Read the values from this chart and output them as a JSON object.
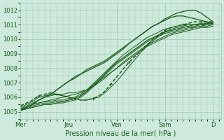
{
  "bg_color": "#ceeadc",
  "grid_color": "#a0c8b0",
  "line_color": "#1a5c1a",
  "xlabel": "Pression niveau de la mer( hPa )",
  "xlabel_color": "#1a5c1a",
  "ylim": [
    1004.5,
    1012.5
  ],
  "yticks": [
    1005,
    1006,
    1007,
    1008,
    1009,
    1010,
    1011,
    1012
  ],
  "xtick_labels": [
    "Mer",
    "Jeu",
    "Ven",
    "Sam",
    "D"
  ],
  "xtick_positions": [
    0,
    48,
    96,
    144,
    192
  ],
  "total_hours": 200,
  "lines": [
    {
      "x": [
        0,
        6,
        12,
        18,
        24,
        30,
        36,
        42,
        48,
        54,
        60,
        66,
        72,
        78,
        84,
        90,
        96,
        102,
        108,
        114,
        120,
        126,
        132,
        138,
        144,
        150,
        156,
        162,
        168,
        174,
        180,
        186,
        192
      ],
      "y": [
        1005.1,
        1005.3,
        1005.5,
        1005.6,
        1005.7,
        1005.7,
        1005.8,
        1005.8,
        1005.9,
        1006.0,
        1006.2,
        1006.5,
        1006.9,
        1007.3,
        1007.7,
        1008.1,
        1008.5,
        1008.9,
        1009.2,
        1009.5,
        1009.8,
        1010.1,
        1010.3,
        1010.5,
        1010.7,
        1010.8,
        1010.9,
        1011.0,
        1011.0,
        1011.0,
        1011.0,
        1011.1,
        1011.1
      ],
      "style": "-",
      "lw": 0.7,
      "marker": null
    },
    {
      "x": [
        0,
        6,
        12,
        18,
        24,
        30,
        36,
        42,
        48,
        54,
        60,
        66,
        72,
        78,
        84,
        90,
        96,
        102,
        108,
        114,
        120,
        126,
        132,
        138,
        144,
        150,
        156,
        162,
        168,
        174,
        180,
        186,
        192
      ],
      "y": [
        1005.1,
        1005.2,
        1005.4,
        1005.5,
        1005.6,
        1005.6,
        1005.7,
        1005.7,
        1005.8,
        1005.9,
        1006.1,
        1006.4,
        1006.8,
        1007.2,
        1007.6,
        1008.0,
        1008.4,
        1008.7,
        1009.0,
        1009.3,
        1009.6,
        1009.9,
        1010.1,
        1010.3,
        1010.5,
        1010.6,
        1010.7,
        1010.8,
        1010.9,
        1010.9,
        1011.0,
        1011.0,
        1011.0
      ],
      "style": "-",
      "lw": 0.7,
      "marker": null
    },
    {
      "x": [
        0,
        6,
        12,
        18,
        24,
        30,
        36,
        42,
        48,
        54,
        60,
        66,
        72,
        78,
        84,
        90,
        96,
        102,
        108,
        114,
        120,
        126,
        132,
        138,
        144,
        150,
        156,
        162,
        168,
        174,
        180,
        186,
        192
      ],
      "y": [
        1005.1,
        1005.2,
        1005.3,
        1005.4,
        1005.5,
        1005.5,
        1005.6,
        1005.6,
        1005.7,
        1005.8,
        1006.0,
        1006.3,
        1006.7,
        1007.1,
        1007.5,
        1007.9,
        1008.3,
        1008.6,
        1008.9,
        1009.2,
        1009.5,
        1009.8,
        1010.0,
        1010.2,
        1010.4,
        1010.5,
        1010.6,
        1010.7,
        1010.8,
        1010.8,
        1010.9,
        1010.9,
        1011.0
      ],
      "style": "-",
      "lw": 0.7,
      "marker": null
    },
    {
      "x": [
        0,
        6,
        12,
        18,
        24,
        30,
        36,
        42,
        48,
        54,
        60,
        66,
        72,
        78,
        84,
        90,
        96,
        102,
        108,
        114,
        120,
        126,
        132,
        138,
        144,
        150,
        156,
        162,
        168,
        174,
        180,
        186,
        192
      ],
      "y": [
        1005.1,
        1005.2,
        1005.3,
        1005.4,
        1005.5,
        1005.5,
        1005.6,
        1005.7,
        1005.8,
        1005.9,
        1006.1,
        1006.4,
        1006.8,
        1007.2,
        1007.6,
        1008.0,
        1008.4,
        1008.7,
        1009.0,
        1009.3,
        1009.6,
        1009.9,
        1010.1,
        1010.3,
        1010.5,
        1010.6,
        1010.7,
        1010.8,
        1010.9,
        1011.0,
        1011.0,
        1011.1,
        1011.1
      ],
      "style": "-",
      "lw": 0.7,
      "marker": null
    },
    {
      "x": [
        0,
        6,
        12,
        18,
        24,
        30,
        36,
        42,
        48,
        54,
        60,
        66,
        72,
        78,
        84,
        90,
        96,
        102,
        108,
        114,
        120,
        126,
        132,
        138,
        144,
        150,
        156,
        162,
        168,
        174,
        180,
        186,
        192
      ],
      "y": [
        1005.2,
        1005.3,
        1005.5,
        1005.6,
        1005.7,
        1005.8,
        1005.9,
        1006.0,
        1006.1,
        1006.2,
        1006.3,
        1006.5,
        1006.8,
        1007.1,
        1007.4,
        1007.7,
        1008.0,
        1008.3,
        1008.6,
        1008.9,
        1009.2,
        1009.5,
        1009.7,
        1009.9,
        1010.1,
        1010.3,
        1010.4,
        1010.5,
        1010.6,
        1010.7,
        1010.8,
        1010.8,
        1010.9
      ],
      "style": "-",
      "lw": 0.7,
      "marker": null
    },
    {
      "x": [
        0,
        6,
        12,
        18,
        24,
        30,
        36,
        42,
        48,
        54,
        60,
        66,
        72,
        78,
        84,
        90,
        96,
        102,
        108,
        114,
        120,
        126,
        132,
        138,
        144,
        150,
        156,
        162,
        168,
        174,
        180,
        186,
        192
      ],
      "y": [
        1005.2,
        1005.4,
        1005.6,
        1005.8,
        1006.0,
        1006.1,
        1006.2,
        1006.2,
        1006.3,
        1006.3,
        1006.4,
        1006.5,
        1006.7,
        1007.0,
        1007.3,
        1007.7,
        1008.0,
        1008.4,
        1008.7,
        1009.0,
        1009.3,
        1009.6,
        1009.8,
        1010.0,
        1010.2,
        1010.4,
        1010.5,
        1010.6,
        1010.7,
        1010.8,
        1010.9,
        1011.0,
        1011.0
      ],
      "style": "-",
      "lw": 0.7,
      "marker": null
    },
    {
      "x": [
        0,
        6,
        12,
        18,
        24,
        30,
        36,
        42,
        48,
        54,
        60,
        66,
        72,
        78,
        84,
        90,
        96,
        102,
        108,
        114,
        120,
        126,
        132,
        138,
        144,
        150,
        156,
        162,
        168,
        174,
        180,
        186,
        192
      ],
      "y": [
        1005.3,
        1005.5,
        1005.7,
        1006.0,
        1006.1,
        1006.2,
        1006.2,
        1006.1,
        1006.0,
        1005.9,
        1005.8,
        1005.8,
        1005.9,
        1006.0,
        1006.3,
        1006.7,
        1007.1,
        1007.6,
        1008.1,
        1008.6,
        1009.1,
        1009.5,
        1009.9,
        1010.2,
        1010.5,
        1010.7,
        1010.8,
        1010.9,
        1011.0,
        1011.0,
        1011.1,
        1011.1,
        1011.1
      ],
      "style": "-",
      "lw": 0.7,
      "marker": null
    },
    {
      "x": [
        0,
        6,
        12,
        18,
        24,
        30,
        36,
        42,
        48,
        54,
        60,
        66,
        72,
        78,
        84,
        90,
        96,
        102,
        108,
        114,
        120,
        126,
        132,
        138,
        144,
        150,
        156,
        162,
        168,
        174,
        180,
        186,
        192
      ],
      "y": [
        1005.4,
        1005.6,
        1005.8,
        1006.1,
        1006.2,
        1006.3,
        1006.2,
        1006.1,
        1006.0,
        1005.9,
        1005.8,
        1005.8,
        1005.9,
        1006.1,
        1006.4,
        1006.9,
        1007.4,
        1007.9,
        1008.4,
        1008.8,
        1009.2,
        1009.6,
        1010.0,
        1010.3,
        1010.6,
        1010.8,
        1010.9,
        1011.0,
        1011.1,
        1011.2,
        1011.2,
        1011.2,
        1011.2
      ],
      "style": "--",
      "lw": 1.0,
      "marker": "+"
    },
    {
      "x": [
        0,
        6,
        12,
        18,
        24,
        30,
        36,
        42,
        48,
        54,
        60,
        66,
        72,
        78,
        84,
        90,
        96,
        102,
        108,
        114,
        120,
        126,
        132,
        138,
        144,
        150,
        156,
        162,
        168,
        174,
        180,
        186,
        192
      ],
      "y": [
        1005.1,
        1005.3,
        1005.5,
        1005.8,
        1006.0,
        1006.2,
        1006.5,
        1006.8,
        1007.1,
        1007.3,
        1007.6,
        1007.8,
        1008.0,
        1008.2,
        1008.4,
        1008.7,
        1009.0,
        1009.3,
        1009.7,
        1010.0,
        1010.3,
        1010.6,
        1010.9,
        1011.1,
        1011.4,
        1011.6,
        1011.8,
        1011.9,
        1012.0,
        1012.0,
        1011.8,
        1011.5,
        1011.2
      ],
      "style": "-",
      "lw": 0.9,
      "marker": null
    },
    {
      "x": [
        0,
        6,
        12,
        18,
        24,
        30,
        36,
        42,
        48,
        54,
        60,
        66,
        72,
        78,
        84,
        90,
        96,
        102,
        108,
        114,
        120,
        126,
        132,
        138,
        144,
        150,
        156,
        162,
        168,
        174,
        180,
        186,
        192
      ],
      "y": [
        1005.1,
        1005.3,
        1005.5,
        1005.8,
        1006.0,
        1006.2,
        1006.5,
        1006.8,
        1007.1,
        1007.4,
        1007.6,
        1007.9,
        1008.1,
        1008.3,
        1008.5,
        1008.8,
        1009.1,
        1009.4,
        1009.7,
        1010.0,
        1010.3,
        1010.6,
        1010.9,
        1011.1,
        1011.3,
        1011.5,
        1011.6,
        1011.6,
        1011.5,
        1011.4,
        1011.3,
        1011.2,
        1011.1
      ],
      "style": "-",
      "lw": 0.9,
      "marker": null
    }
  ]
}
